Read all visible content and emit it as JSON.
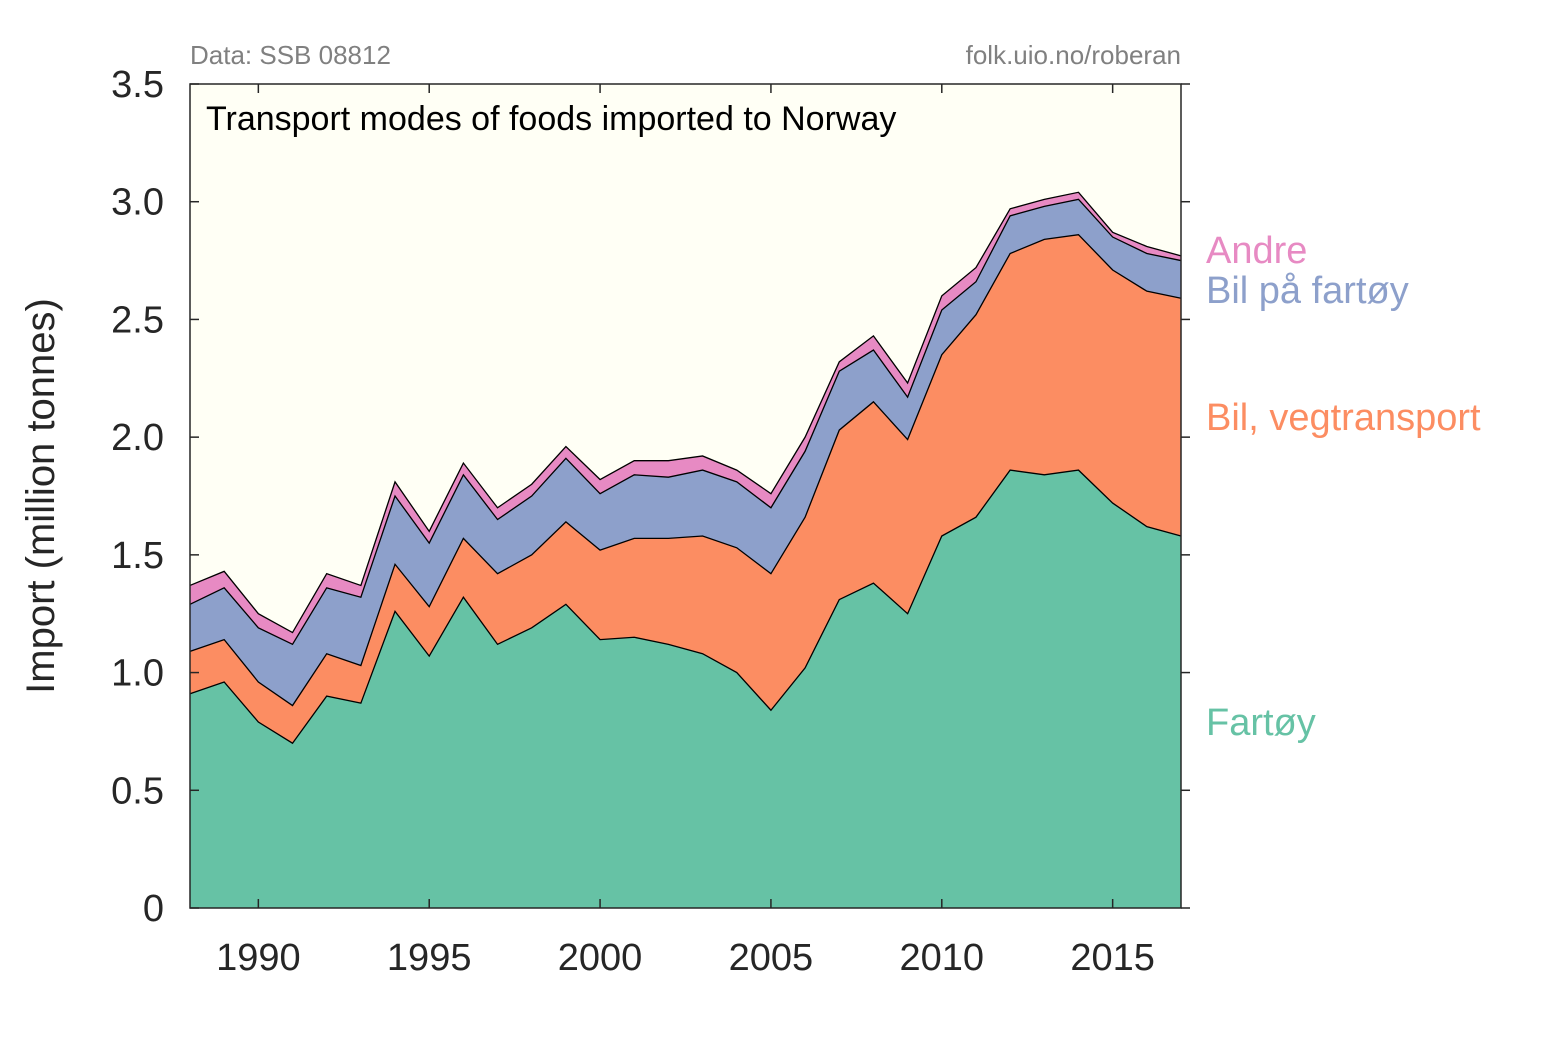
{
  "source_left": "Data: SSB 08812",
  "source_right": "folk.uio.no/roberan",
  "chart_data": {
    "type": "area",
    "stacked": true,
    "title": "Transport modes of foods imported to Norway",
    "xlabel": "",
    "ylabel": "Import (million tonnes)",
    "xlim": [
      1988,
      2017
    ],
    "ylim": [
      0,
      3.5
    ],
    "x_ticks": [
      1990,
      1995,
      2000,
      2005,
      2010,
      2015
    ],
    "x_tick_labels": [
      "1990",
      "1995",
      "2000",
      "2005",
      "2010",
      "2015"
    ],
    "y_ticks": [
      0,
      0.5,
      1.0,
      1.5,
      2.0,
      2.5,
      3.0,
      3.5
    ],
    "y_tick_labels": [
      "0",
      "0.5",
      "1.0",
      "1.5",
      "2.0",
      "2.5",
      "3.0",
      "3.5"
    ],
    "grid": false,
    "legend_placement": "right, inline at series end",
    "background_color": "#fffff5",
    "x": [
      1988,
      1989,
      1990,
      1991,
      1992,
      1993,
      1994,
      1995,
      1996,
      1997,
      1998,
      1999,
      2000,
      2001,
      2002,
      2003,
      2004,
      2005,
      2006,
      2007,
      2008,
      2009,
      2010,
      2011,
      2012,
      2013,
      2014,
      2015,
      2016,
      2017
    ],
    "series": [
      {
        "name": "Fartøy",
        "color": "#66c2a5",
        "values": [
          0.91,
          0.96,
          0.79,
          0.7,
          0.9,
          0.87,
          1.26,
          1.07,
          1.32,
          1.12,
          1.19,
          1.29,
          1.14,
          1.15,
          1.12,
          1.08,
          1.0,
          0.84,
          1.02,
          1.31,
          1.38,
          1.25,
          1.58,
          1.66,
          1.86,
          1.84,
          1.86,
          1.72,
          1.62,
          1.58
        ]
      },
      {
        "name": "Bil, vegtransport",
        "color": "#fc8d62",
        "values": [
          0.18,
          0.18,
          0.17,
          0.16,
          0.18,
          0.16,
          0.2,
          0.21,
          0.25,
          0.3,
          0.31,
          0.35,
          0.38,
          0.42,
          0.45,
          0.5,
          0.53,
          0.58,
          0.64,
          0.72,
          0.77,
          0.74,
          0.77,
          0.86,
          0.92,
          1.0,
          1.0,
          0.99,
          1.0,
          1.01
        ]
      },
      {
        "name": "Bil på fartøy",
        "color": "#8da0cb",
        "values": [
          0.2,
          0.22,
          0.23,
          0.26,
          0.28,
          0.29,
          0.29,
          0.27,
          0.27,
          0.23,
          0.25,
          0.27,
          0.24,
          0.27,
          0.26,
          0.28,
          0.28,
          0.28,
          0.28,
          0.25,
          0.22,
          0.18,
          0.19,
          0.14,
          0.16,
          0.14,
          0.15,
          0.14,
          0.16,
          0.16
        ]
      },
      {
        "name": "Andre",
        "color": "#e78ac3",
        "values": [
          0.08,
          0.07,
          0.06,
          0.05,
          0.06,
          0.05,
          0.06,
          0.05,
          0.05,
          0.05,
          0.05,
          0.05,
          0.06,
          0.06,
          0.07,
          0.06,
          0.05,
          0.06,
          0.06,
          0.04,
          0.06,
          0.06,
          0.06,
          0.06,
          0.03,
          0.03,
          0.03,
          0.02,
          0.03,
          0.02
        ]
      }
    ]
  }
}
